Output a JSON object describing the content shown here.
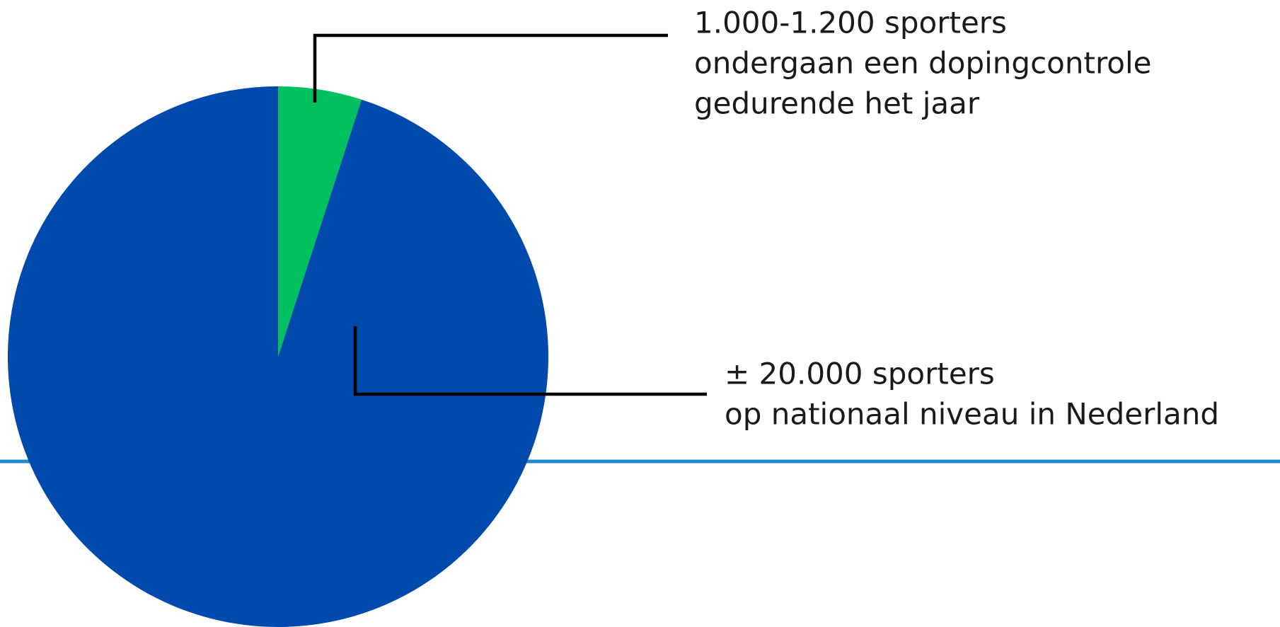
{
  "chart_data": {
    "type": "pie",
    "labels": [
      [
        "1.000-1.200 sporters",
        "ondergaan een dopingcontrole",
        "gedurende het jaar"
      ],
      [
        "± 20.000 sporters",
        "op nationaal niveau in Nederland"
      ]
    ],
    "values": [
      5,
      95
    ],
    "colors": [
      "#00c060",
      "#004aad"
    ]
  }
}
